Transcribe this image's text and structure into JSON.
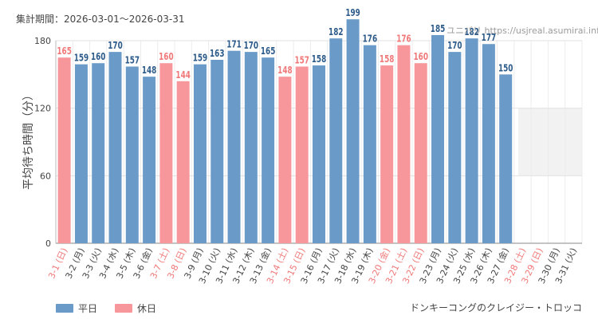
{
  "header": {
    "period_label": "集計期間：",
    "period_range": "2026-03-01～2026-03-31"
  },
  "watermark": "ユニバリ https://usjreal.asumirai.info",
  "footer": {
    "attraction": "ドンキーコングのクレイジー・トロッコ"
  },
  "colors": {
    "weekday": "#6a9ac8",
    "holiday": "#f7969b",
    "holiday_text": "#f07878",
    "axis_text": "#444444",
    "label_text": "#2d5b8a",
    "band": "#f2f2f2"
  },
  "chart_data": {
    "type": "bar",
    "title": "",
    "ylabel": "平均待ち時間（分）",
    "xlabel": "",
    "ylim": [
      0,
      180
    ],
    "yticks": [
      0,
      60,
      120,
      180
    ],
    "grid": true,
    "legend": [
      {
        "name": "平日",
        "key": "weekday"
      },
      {
        "name": "休日",
        "key": "holiday"
      }
    ],
    "categories": [
      "3-1 (日)",
      "3-2 (月)",
      "3-3 (火)",
      "3-4 (水)",
      "3-5 (木)",
      "3-6 (金)",
      "3-7 (土)",
      "3-8 (日)",
      "3-9 (月)",
      "3-10 (火)",
      "3-11 (水)",
      "3-12 (木)",
      "3-13 (金)",
      "3-14 (土)",
      "3-15 (日)",
      "3-16 (月)",
      "3-17 (火)",
      "3-18 (水)",
      "3-19 (木)",
      "3-20 (金)",
      "3-21 (土)",
      "3-22 (日)",
      "3-23 (月)",
      "3-24 (火)",
      "3-25 (水)",
      "3-26 (木)",
      "3-27 (金)",
      "3-28 (土)",
      "3-29 (日)",
      "3-30 (月)",
      "3-31 (火)"
    ],
    "values": [
      165,
      159,
      160,
      170,
      157,
      148,
      160,
      144,
      159,
      163,
      171,
      170,
      165,
      148,
      157,
      158,
      182,
      199,
      176,
      158,
      176,
      160,
      185,
      170,
      182,
      177,
      150,
      null,
      null,
      null,
      null
    ],
    "holiday": [
      true,
      false,
      false,
      false,
      false,
      false,
      true,
      true,
      false,
      false,
      false,
      false,
      false,
      true,
      true,
      false,
      false,
      false,
      false,
      true,
      true,
      true,
      false,
      false,
      false,
      false,
      false,
      true,
      true,
      false,
      false
    ]
  }
}
